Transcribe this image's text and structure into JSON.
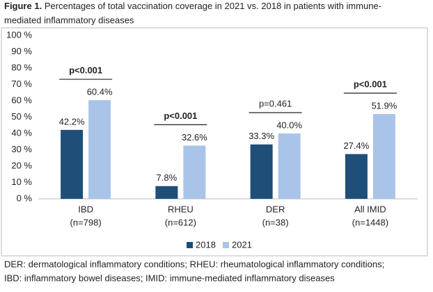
{
  "chart_data": {
    "type": "bar",
    "title_label": "Figure 1.",
    "title": "Percentages of total vaccination coverage in 2021 vs. 2018 in patients with immune-mediated inflammatory diseases",
    "categories": [
      [
        "IBD",
        "(n=798)"
      ],
      [
        "RHEU",
        "(n=612)"
      ],
      [
        "DER",
        "(n=38)"
      ],
      [
        "All IMID",
        "(n=1448)"
      ]
    ],
    "series": [
      {
        "name": "2018",
        "color": "#1f4e79",
        "values": [
          42.2,
          7.8,
          33.3,
          27.4
        ],
        "value_labels": [
          "42.2%",
          "7.8%",
          "33.3%",
          "27.4%"
        ]
      },
      {
        "name": "2021",
        "color": "#a9c4e8",
        "values": [
          60.4,
          32.6,
          40.0,
          51.9
        ],
        "value_labels": [
          "60.4%",
          "32.6%",
          "40.0%",
          "51.9%"
        ]
      }
    ],
    "annotations": [
      {
        "text": "p<0.001",
        "bold": true
      },
      {
        "text": "p<0.001",
        "bold": true
      },
      {
        "text": "p=0.461",
        "bold": false
      },
      {
        "text": "p<0.001",
        "bold": true
      }
    ],
    "ylim": [
      0,
      100
    ],
    "yticks": [
      {
        "value": 0,
        "label": "0 %"
      },
      {
        "value": 10,
        "label": "10 %"
      },
      {
        "value": 20,
        "label": "20 %"
      },
      {
        "value": 30,
        "label": "30 %"
      },
      {
        "value": 40,
        "label": "40 %"
      },
      {
        "value": 50,
        "label": "50 %"
      },
      {
        "value": 60,
        "label": "60 %"
      },
      {
        "value": 70,
        "label": "70 %"
      },
      {
        "value": 80,
        "label": "80 %"
      },
      {
        "value": 90,
        "label": "90 %"
      },
      {
        "value": 100,
        "label": "100 %"
      }
    ],
    "legend": "bottom",
    "footnote": [
      "DER: dermatological inflammatory conditions; RHEU: rheumatological inflammatory conditions;",
      "IBD: inflammatory bowel diseases; IMID: immune-mediated inflammatory diseases"
    ]
  }
}
